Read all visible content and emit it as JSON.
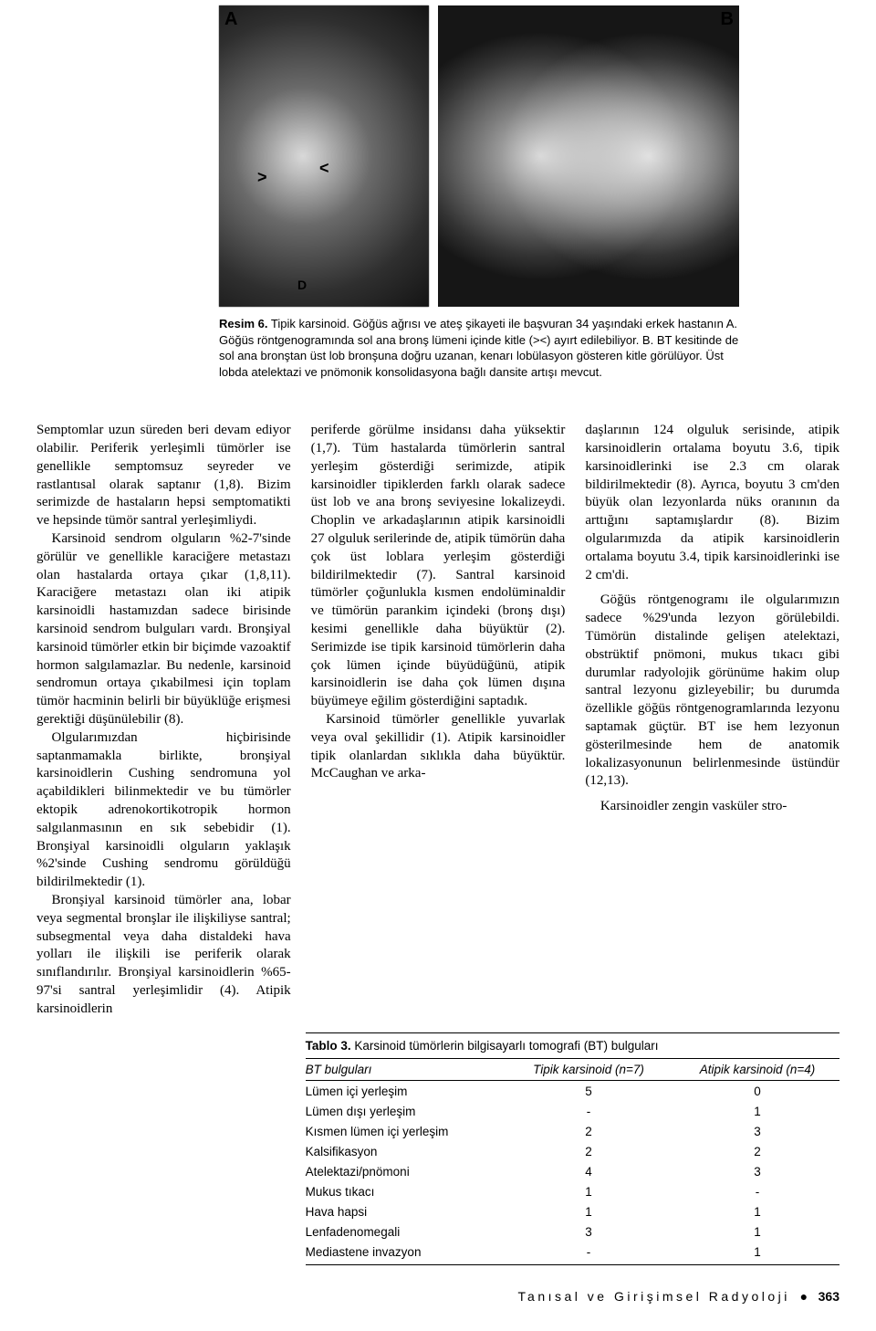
{
  "figure": {
    "labelA": "A",
    "labelB": "B",
    "caption_lead": "Resim 6.",
    "caption_body": " Tipik karsinoid. Göğüs ağrısı ve ateş şikayeti ile başvuran 34 yaşındaki erkek hastanın A. Göğüs röntgenogramında sol ana bronş lümeni içinde kitle (><) ayırt edilebiliyor. B. BT kesitinde de sol ana bronştan üst lob bronşuna doğru uzanan, kenarı lobülasyon gösteren kitle görülüyor. Üst lobda atelektazi ve pnömonik konsolidasyona bağlı dansite artışı mevcut."
  },
  "bodyA": {
    "p1": "Semptomlar uzun süreden beri devam ediyor olabilir. Periferik yerleşimli tümörler ise genellikle semptomsuz seyreder ve rastlantısal olarak saptanır (1,8). Bizim serimizde de hastaların hepsi semptomatikti ve hepsinde tümör santral yerleşimliydi.",
    "p2": "Karsinoid sendrom olguların %2-7'sinde görülür ve genellikle karaciğere metastazı olan hastalarda ortaya çıkar (1,8,11). Karaciğere metastazı olan iki atipik karsinoidli hastamızdan sadece birisinde karsinoid sendrom bulguları vardı. Bronşiyal karsinoid tümörler etkin bir biçimde vazoaktif hormon salgılamazlar. Bu nedenle, karsinoid sendromun ortaya çıkabilmesi için toplam tümör hacminin belirli bir büyüklüğe erişmesi gerektiği düşünülebilir (8).",
    "p3": "Olgularımızdan hiçbirisinde saptanmamakla birlikte, bronşiyal karsinoidlerin Cushing sendromuna yol açabildikleri bilinmektedir ve bu tümörler ektopik adrenokortikotropik hormon salgılanmasının en sık sebebidir (1). Bronşiyal karsinoidli olguların yaklaşık %2'sinde Cushing sendromu görüldüğü bildirilmektedir (1).",
    "p4": "Bronşiyal karsinoid tümörler ana, lobar veya segmental bronşlar ile ilişkiliyse santral; subsegmental veya daha distaldeki hava yolları ile ilişkili ise periferik olarak sınıflandırılır. Bronşiyal karsinoidlerin %65-97'si santral yerleşimlidir (4). Atipik karsinoidlerin"
  },
  "bodyB": {
    "p1": "periferde görülme insidansı daha yüksektir (1,7). Tüm hastalarda tümörlerin santral yerleşim gösterdiği serimizde, atipik karsinoidler tipiklerden farklı olarak sadece üst lob ve ana bronş seviyesine lokalizeydi. Choplin ve arkadaşlarının atipik karsinoidli 27 olguluk serilerinde de, atipik tümörün daha çok üst loblara yerleşim gösterdiği bildirilmektedir (7). Santral karsinoid tümörler çoğunlukla kısmen endolüminaldir ve tümörün parankim içindeki (bronş dışı) kesimi genellikle daha büyüktür (2). Serimizde ise tipik karsinoid tümörlerin daha çok lümen içinde büyüdüğünü, atipik karsinoidlerin ise daha çok lümen dışına büyümeye eğilim gösterdiğini saptadık.",
    "p2": "Karsinoid tümörler genellikle yuvarlak veya oval şekillidir (1). Atipik karsinoidler tipik olanlardan sıklıkla daha büyüktür. McCaughan ve arka-"
  },
  "bodyC": {
    "p1": "daşlarının 124 olguluk serisinde, atipik karsinoidlerin ortalama boyutu 3.6, tipik karsinoidlerinki ise 2.3 cm olarak bildirilmektedir (8). Ayrıca, boyutu 3 cm'den büyük olan lezyonlarda nüks oranının da arttığını saptamışlardır (8). Bizim olgularımızda da atipik karsinoidlerin ortalama boyutu 3.4, tipik karsinoidlerinki ise 2 cm'di.",
    "p2": "Göğüs röntgenogramı ile olgularımızın sadece %29'unda lezyon görülebildi. Tümörün distalinde gelişen atelektazi, obstrüktif pnömoni, mukus tıkacı gibi durumlar radyolojik görünüme hakim olup santral lezyonu gizleyebilir; bu durumda özellikle göğüs röntgenogramlarında lezyonu saptamak güçtür. BT ise hem lezyonun gösterilmesinde hem de anatomik lokalizasyonunun belirlenmesinde üstündür (12,13).",
    "p3": "Karsinoidler zengin vasküler stro-"
  },
  "table": {
    "title_lead": "Tablo 3.",
    "title_rest": " Karsinoid tümörlerin bilgisayarlı tomografi (BT) bulguları",
    "columns": [
      "BT bulguları",
      "Tipik karsinoid (n=7)",
      "Atipik karsinoid (n=4)"
    ],
    "rows": [
      [
        "Lümen içi yerleşim",
        "5",
        "0"
      ],
      [
        "Lümen dışı yerleşim",
        "-",
        "1"
      ],
      [
        "Kısmen lümen içi yerleşim",
        "2",
        "3"
      ],
      [
        "Kalsifikasyon",
        "2",
        "2"
      ],
      [
        "Atelektazi/pnömoni",
        "4",
        "3"
      ],
      [
        "Mukus tıkacı",
        "1",
        "-"
      ],
      [
        "Hava hapsi",
        "1",
        "1"
      ],
      [
        "Lenfadenomegali",
        "3",
        "1"
      ],
      [
        "Mediastene invazyon",
        "-",
        "1"
      ]
    ]
  },
  "footer": {
    "journal": "Tanısal ve Girişimsel Radyoloji",
    "page": "363"
  },
  "colors": {
    "text": "#000000",
    "bg": "#ffffff",
    "rule": "#000000"
  }
}
